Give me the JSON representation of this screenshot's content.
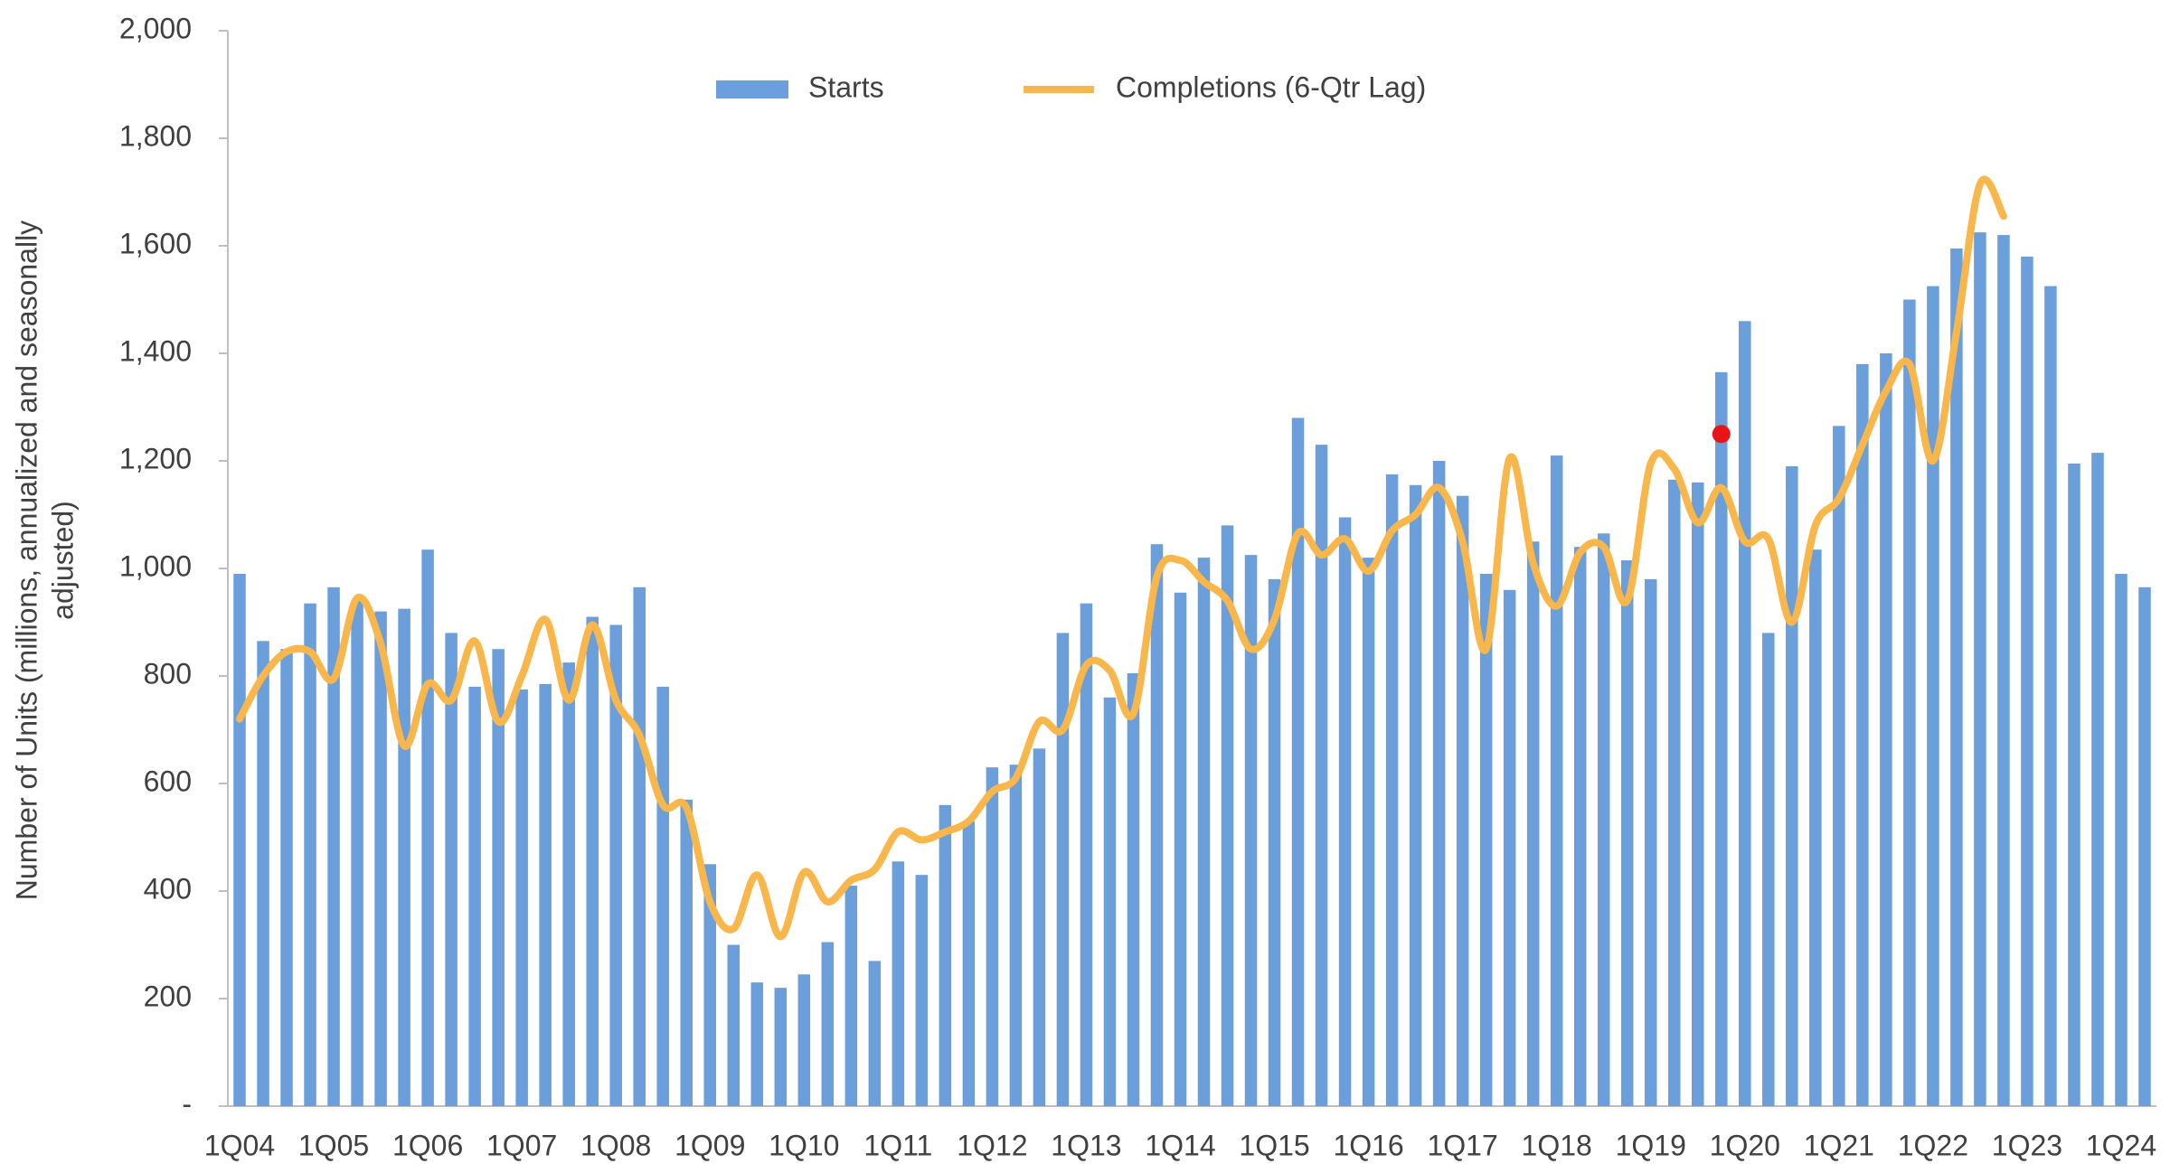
{
  "chart_data": {
    "type": "bar-line",
    "y_label": [
      "Number of Units (millions, annualized and seasonally",
      "adjusted)"
    ],
    "categories": [
      "1Q04",
      null,
      null,
      null,
      "1Q05",
      null,
      null,
      null,
      "1Q06",
      null,
      null,
      null,
      "1Q07",
      null,
      null,
      null,
      "1Q08",
      null,
      null,
      null,
      "1Q09",
      null,
      null,
      null,
      "1Q10",
      null,
      null,
      null,
      "1Q11",
      null,
      null,
      null,
      "1Q12",
      null,
      null,
      null,
      "1Q13",
      null,
      null,
      null,
      "1Q14",
      null,
      null,
      null,
      "1Q15",
      null,
      null,
      null,
      "1Q16",
      null,
      null,
      null,
      "1Q17",
      null,
      null,
      null,
      "1Q18",
      null,
      null,
      null,
      "1Q19",
      null,
      null,
      null,
      "1Q20",
      null,
      null,
      null,
      "1Q21",
      null,
      null,
      null,
      "1Q22",
      null,
      null,
      null,
      "1Q23",
      null,
      null,
      null,
      "1Q24",
      null
    ],
    "series": [
      {
        "name": "Starts",
        "type": "bar",
        "color": "#6a9fdb",
        "values": [
          990,
          865,
          850,
          935,
          965,
          940,
          920,
          925,
          1035,
          880,
          780,
          850,
          775,
          785,
          825,
          910,
          895,
          965,
          780,
          570,
          450,
          300,
          230,
          220,
          245,
          305,
          410,
          270,
          455,
          430,
          560,
          530,
          630,
          635,
          665,
          880,
          935,
          760,
          805,
          1045,
          955,
          1020,
          1080,
          1025,
          980,
          1280,
          1230,
          1095,
          1020,
          1175,
          1155,
          1200,
          1135,
          990,
          960,
          1050,
          1210,
          1040,
          1065,
          1015,
          980,
          1165,
          1160,
          1365,
          1460,
          880,
          1190,
          1035,
          1265,
          1380,
          1400,
          1500,
          1525,
          1595,
          1625,
          1620,
          1580,
          1525,
          1195,
          1215,
          990,
          965
        ]
      },
      {
        "name": "Completions (6-Qtr Lag)",
        "type": "line",
        "color": "#f9b64a",
        "values": [
          720,
          800,
          845,
          845,
          795,
          945,
          860,
          670,
          785,
          755,
          865,
          715,
          800,
          905,
          755,
          895,
          755,
          690,
          560,
          555,
          380,
          330,
          430,
          315,
          435,
          380,
          420,
          440,
          510,
          495,
          510,
          530,
          585,
          610,
          715,
          700,
          820,
          810,
          730,
          985,
          1015,
          975,
          940,
          850,
          905,
          1065,
          1025,
          1055,
          995,
          1070,
          1100,
          1150,
          1050,
          850,
          1205,
          1010,
          930,
          1030,
          1040,
          940,
          1195,
          1185,
          1085,
          1150,
          1050,
          1055,
          900,
          1080,
          1130,
          1230,
          1330,
          1380,
          1200,
          1440,
          1715,
          1655,
          null,
          null,
          null,
          null,
          null,
          null
        ]
      }
    ],
    "marker": {
      "index": 63,
      "value": 1250,
      "color": "#e8141a"
    },
    "ylim": [
      0,
      2000
    ],
    "yticks": [
      {
        "value": 0,
        "label": "-"
      },
      {
        "value": 200,
        "label": "200"
      },
      {
        "value": 400,
        "label": "400"
      },
      {
        "value": 600,
        "label": "600"
      },
      {
        "value": 800,
        "label": "800"
      },
      {
        "value": 1000,
        "label": "1,000"
      },
      {
        "value": 1200,
        "label": "1,200"
      },
      {
        "value": 1400,
        "label": "1,400"
      },
      {
        "value": 1600,
        "label": "1,600"
      },
      {
        "value": 1800,
        "label": "1,800"
      },
      {
        "value": 2000,
        "label": "2,000"
      }
    ],
    "grid": false,
    "legend": "top"
  }
}
